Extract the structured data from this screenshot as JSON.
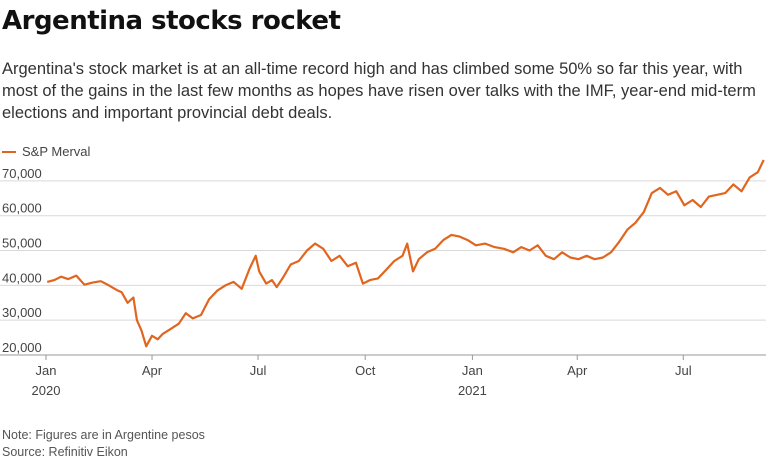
{
  "title": "Argentina stocks rocket",
  "subtitle": "Argentina's stock market is at an all-time record high and has climbed some 50% so far this year, with most of the gains in the last few months as hopes have risen over talks with the IMF, year-end mid-term elections and important provincial debt deals.",
  "legend_label": "S&P Merval",
  "note": "Note: Figures are in Argentine pesos",
  "source": "Source: Refinitiv Eikon",
  "colors": {
    "line": "#e0661f",
    "grid": "#d9d9d9"
  },
  "chart_data": {
    "type": "line",
    "series": [
      {
        "name": "S&P Merval",
        "points": [
          [
            "2020-01-02",
            41000
          ],
          [
            "2020-01-08",
            41500
          ],
          [
            "2020-01-14",
            42500
          ],
          [
            "2020-01-20",
            41800
          ],
          [
            "2020-01-27",
            42800
          ],
          [
            "2020-02-03",
            40200
          ],
          [
            "2020-02-10",
            40800
          ],
          [
            "2020-02-17",
            41200
          ],
          [
            "2020-02-24",
            40000
          ],
          [
            "2020-03-02",
            38600
          ],
          [
            "2020-03-06",
            38000
          ],
          [
            "2020-03-11",
            35000
          ],
          [
            "2020-03-16",
            36500
          ],
          [
            "2020-03-19",
            30000
          ],
          [
            "2020-03-23",
            27000
          ],
          [
            "2020-03-27",
            22500
          ],
          [
            "2020-04-01",
            25500
          ],
          [
            "2020-04-06",
            24500
          ],
          [
            "2020-04-10",
            26000
          ],
          [
            "2020-04-17",
            27500
          ],
          [
            "2020-04-24",
            29000
          ],
          [
            "2020-04-30",
            32000
          ],
          [
            "2020-05-06",
            30500
          ],
          [
            "2020-05-13",
            31500
          ],
          [
            "2020-05-20",
            36000
          ],
          [
            "2020-05-27",
            38500
          ],
          [
            "2020-06-03",
            40000
          ],
          [
            "2020-06-10",
            41000
          ],
          [
            "2020-06-17",
            39000
          ],
          [
            "2020-06-24",
            45000
          ],
          [
            "2020-06-29",
            48500
          ],
          [
            "2020-07-02",
            44000
          ],
          [
            "2020-07-08",
            40500
          ],
          [
            "2020-07-13",
            41500
          ],
          [
            "2020-07-17",
            39500
          ],
          [
            "2020-07-22",
            42000
          ],
          [
            "2020-07-29",
            46000
          ],
          [
            "2020-08-05",
            47000
          ],
          [
            "2020-08-12",
            50000
          ],
          [
            "2020-08-19",
            52000
          ],
          [
            "2020-08-26",
            50500
          ],
          [
            "2020-09-02",
            47000
          ],
          [
            "2020-09-09",
            48500
          ],
          [
            "2020-09-16",
            45500
          ],
          [
            "2020-09-23",
            46500
          ],
          [
            "2020-09-29",
            40500
          ],
          [
            "2020-10-05",
            41500
          ],
          [
            "2020-10-12",
            42000
          ],
          [
            "2020-10-19",
            44500
          ],
          [
            "2020-10-26",
            47000
          ],
          [
            "2020-11-02",
            48500
          ],
          [
            "2020-11-06",
            52000
          ],
          [
            "2020-11-11",
            44000
          ],
          [
            "2020-11-16",
            47500
          ],
          [
            "2020-11-23",
            49500
          ],
          [
            "2020-11-30",
            50500
          ],
          [
            "2020-12-07",
            53000
          ],
          [
            "2020-12-14",
            54500
          ],
          [
            "2020-12-21",
            54000
          ],
          [
            "2020-12-28",
            53000
          ],
          [
            "2021-01-04",
            51500
          ],
          [
            "2021-01-12",
            52000
          ],
          [
            "2021-01-20",
            51000
          ],
          [
            "2021-01-28",
            50500
          ],
          [
            "2021-02-05",
            49500
          ],
          [
            "2021-02-12",
            51000
          ],
          [
            "2021-02-19",
            50000
          ],
          [
            "2021-02-26",
            51500
          ],
          [
            "2021-03-05",
            48500
          ],
          [
            "2021-03-12",
            47500
          ],
          [
            "2021-03-19",
            49500
          ],
          [
            "2021-03-26",
            48000
          ],
          [
            "2021-04-02",
            47500
          ],
          [
            "2021-04-09",
            48500
          ],
          [
            "2021-04-16",
            47500
          ],
          [
            "2021-04-23",
            48000
          ],
          [
            "2021-04-30",
            49500
          ],
          [
            "2021-05-07",
            52500
          ],
          [
            "2021-05-14",
            56000
          ],
          [
            "2021-05-21",
            58000
          ],
          [
            "2021-05-28",
            61000
          ],
          [
            "2021-06-04",
            66500
          ],
          [
            "2021-06-11",
            68000
          ],
          [
            "2021-06-18",
            66000
          ],
          [
            "2021-06-25",
            67000
          ],
          [
            "2021-07-02",
            63000
          ],
          [
            "2021-07-09",
            64500
          ],
          [
            "2021-07-16",
            62500
          ],
          [
            "2021-07-23",
            65500
          ],
          [
            "2021-07-30",
            66000
          ],
          [
            "2021-08-06",
            66500
          ],
          [
            "2021-08-13",
            69000
          ],
          [
            "2021-08-20",
            67000
          ],
          [
            "2021-08-27",
            71000
          ],
          [
            "2021-09-03",
            72500
          ],
          [
            "2021-09-08",
            76000
          ]
        ]
      }
    ],
    "x_ticks": [
      {
        "date": "2020-01-01",
        "label": "Jan",
        "sublabel": "2020"
      },
      {
        "date": "2020-04-01",
        "label": "Apr",
        "sublabel": ""
      },
      {
        "date": "2020-07-01",
        "label": "Jul",
        "sublabel": ""
      },
      {
        "date": "2020-10-01",
        "label": "Oct",
        "sublabel": ""
      },
      {
        "date": "2021-01-01",
        "label": "Jan",
        "sublabel": "2021"
      },
      {
        "date": "2021-04-01",
        "label": "Apr",
        "sublabel": ""
      },
      {
        "date": "2021-07-01",
        "label": "Jul",
        "sublabel": ""
      }
    ],
    "y_ticks": [
      20000,
      30000,
      40000,
      50000,
      60000,
      70000
    ],
    "y_tick_labels": [
      "20,000",
      "30,000",
      "40,000",
      "50,000",
      "60,000",
      "70,000"
    ],
    "ylim": [
      20000,
      76000
    ],
    "xlim": [
      "2020-01-01",
      "2021-09-10"
    ],
    "grid": true,
    "legend_position": "top-left"
  }
}
